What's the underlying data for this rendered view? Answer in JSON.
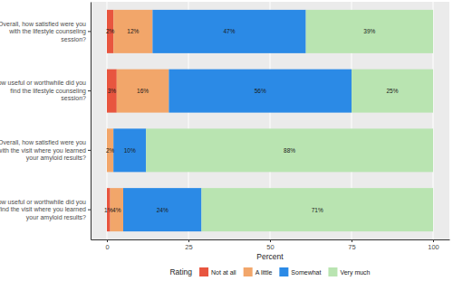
{
  "chart_data": {
    "type": "bar",
    "orientation": "horizontal",
    "stacked": true,
    "data_labels": true,
    "grid": true,
    "legend": "bottom",
    "legend_title": "Rating",
    "xlabel": "Percent",
    "categories": [
      "Overall, how satisfied were you with the lifestyle counseling session?",
      "How useful or worthwhile did you find the lifestyle counseling session?",
      "Overall, how satisfied were you with the visit where you learned your amyloid results?",
      "How useful or worthwhile did you find the visit where you learned your amyloid results?"
    ],
    "series": [
      {
        "name": "Not at all",
        "color": "#e8553f",
        "values": [
          2,
          3,
          null,
          1
        ],
        "value_labels": [
          "2%",
          "3%",
          null,
          "1%"
        ]
      },
      {
        "name": "A little",
        "color": "#f2a66a",
        "values": [
          12,
          16,
          2,
          4
        ],
        "value_labels": [
          "12%",
          "16%",
          "2%",
          "4%"
        ]
      },
      {
        "name": "Somewhat",
        "color": "#2b8ae6",
        "values": [
          47,
          56,
          10,
          24
        ],
        "value_labels": [
          "47%",
          "56%",
          "10%",
          "24%"
        ]
      },
      {
        "name": "Very much",
        "color": "#b9e4b1",
        "values": [
          39,
          25,
          88,
          71
        ],
        "value_labels": [
          "39%",
          "25%",
          "88%",
          "71%"
        ]
      }
    ],
    "xlim": [
      -5,
      105
    ],
    "xticks": [
      0,
      25,
      50,
      75,
      100
    ]
  }
}
